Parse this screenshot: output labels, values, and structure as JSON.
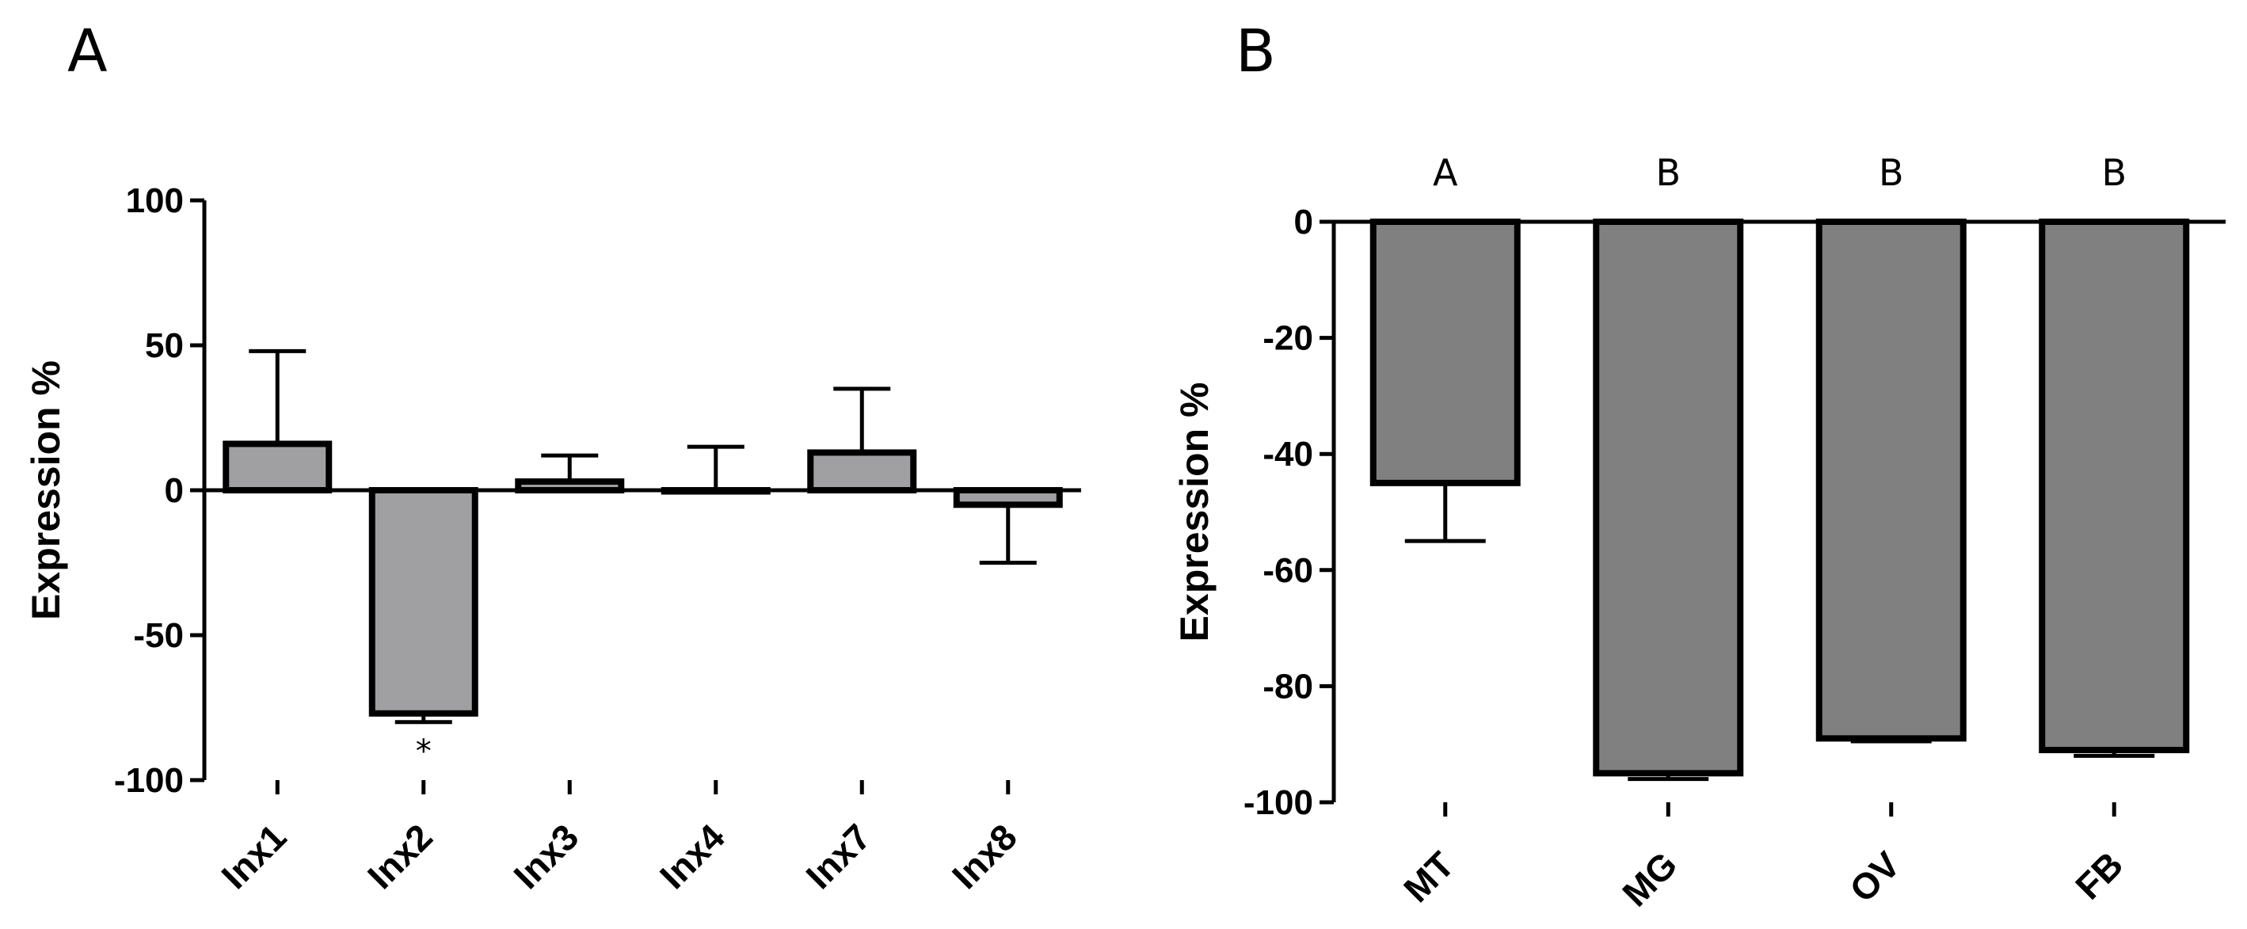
{
  "colors": {
    "bar_a": "#a0a0a2",
    "bar_b": "#808080",
    "stroke": "#000000"
  },
  "chart_data": [
    {
      "panel": "A",
      "type": "bar",
      "categories": [
        "Inx1",
        "Inx2",
        "Inx3",
        "Inx4",
        "Inx7",
        "Inx8"
      ],
      "values": [
        16,
        -77,
        3,
        0,
        13,
        -5
      ],
      "errors": [
        32,
        3,
        9,
        15,
        22,
        20
      ],
      "annotations": [
        "",
        "*",
        "",
        "",
        "",
        ""
      ],
      "ylabel": "Expression %",
      "ylim": [
        -100,
        100
      ],
      "yticks": [
        100,
        50,
        0,
        -50,
        -100
      ],
      "ytick_labels": [
        "100",
        "50",
        "0",
        "-50",
        "-100"
      ]
    },
    {
      "panel": "B",
      "type": "bar",
      "categories": [
        "MT",
        "MG",
        "OV",
        "FB"
      ],
      "values": [
        -45,
        -95,
        -89,
        -91
      ],
      "errors": [
        10,
        1,
        0.5,
        1
      ],
      "annotations": [
        "A",
        "B",
        "B",
        "B"
      ],
      "ylabel": "Expression %",
      "ylim": [
        -100,
        0
      ],
      "yticks": [
        0,
        -20,
        -40,
        -60,
        -80,
        -100
      ],
      "ytick_labels": [
        "0",
        "-20",
        "-40",
        "-60",
        "-80",
        "-100"
      ]
    }
  ]
}
